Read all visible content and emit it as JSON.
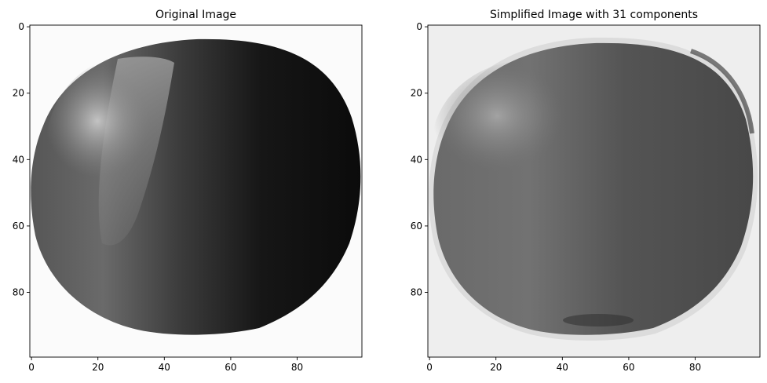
{
  "chart_data": [
    {
      "type": "heatmap",
      "title": "Original Image",
      "colormap": "gray",
      "image_shape": [
        100,
        100
      ],
      "xlim": [
        -0.5,
        99.5
      ],
      "ylim": [
        99.5,
        -0.5
      ],
      "x_ticks": [
        0,
        20,
        40,
        60,
        80
      ],
      "y_ticks": [
        0,
        20,
        40,
        60,
        80
      ],
      "x_tick_labels": [
        "0",
        "20",
        "40",
        "60",
        "80"
      ],
      "y_tick_labels": [
        "0",
        "20",
        "40",
        "60",
        "80"
      ],
      "grid": false
    },
    {
      "type": "heatmap",
      "title": "Simplified Image with 31 components",
      "colormap": "gray",
      "image_shape": [
        100,
        100
      ],
      "xlim": [
        -0.5,
        99.5
      ],
      "ylim": [
        99.5,
        -0.5
      ],
      "x_ticks": [
        0,
        20,
        40,
        60,
        80
      ],
      "y_ticks": [
        0,
        20,
        40,
        60,
        80
      ],
      "x_tick_labels": [
        "0",
        "20",
        "40",
        "60",
        "80"
      ],
      "y_tick_labels": [
        "0",
        "20",
        "40",
        "60",
        "80"
      ],
      "grid": false
    }
  ]
}
